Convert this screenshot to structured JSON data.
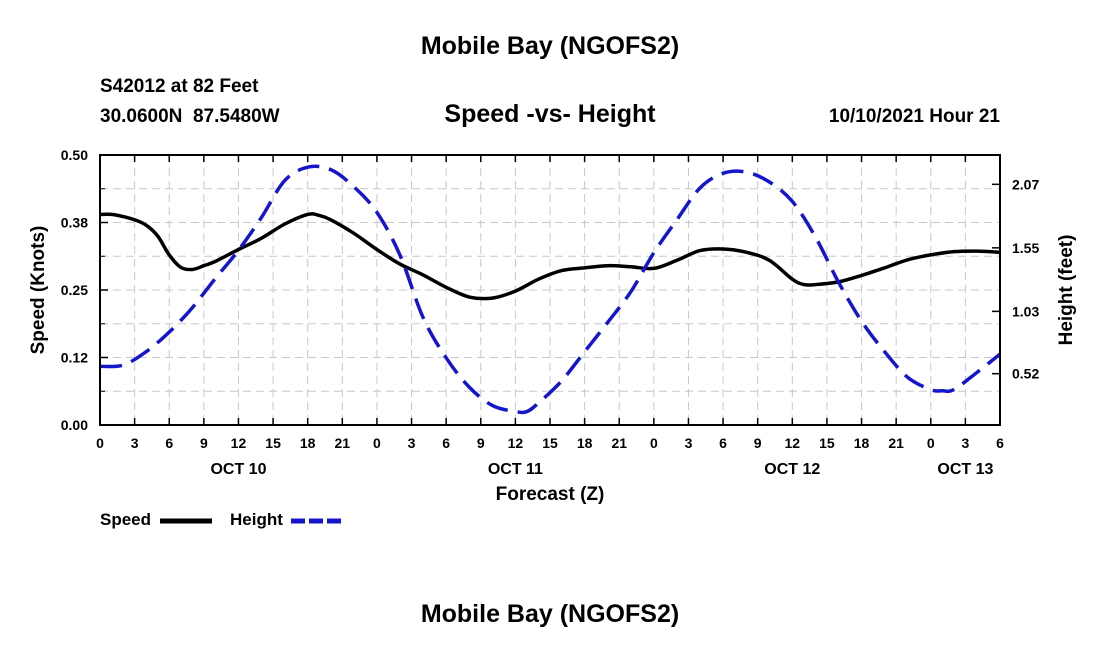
{
  "page": {
    "title": "Mobile Bay (NGOFS2)",
    "station": "S42012 at 82 Feet",
    "coords": "30.0600N  87.5480W",
    "subtitle": "Speed -vs- Height",
    "datetime": "10/10/2021 Hour 21",
    "footer_title": "Mobile Bay (NGOFS2)"
  },
  "legend": {
    "speed_label": "Speed",
    "height_label": "Height"
  },
  "colors": {
    "speed": "#000000",
    "height": "#1515cc",
    "grid": "#c8c8c8"
  },
  "chart_data": {
    "type": "line",
    "xlabel": "Forecast (Z)",
    "ylabel_left": "Speed (Knots)",
    "ylabel_right": "Height (feet)",
    "x_unit": "hours since Oct 10 00Z",
    "xlim": [
      0,
      78
    ],
    "ylim_left": [
      0,
      0.5
    ],
    "ylim_right": [
      0.1,
      2.31
    ],
    "left_ticks": [
      {
        "value": 0.0,
        "label": "0.00"
      },
      {
        "value": 0.125,
        "label": "0.12"
      },
      {
        "value": 0.25,
        "label": "0.25"
      },
      {
        "value": 0.375,
        "label": "0.38"
      },
      {
        "value": 0.5,
        "label": "0.50"
      }
    ],
    "right_ticks": [
      {
        "value": 0.52,
        "label": "0.52"
      },
      {
        "value": 1.03,
        "label": "1.03"
      },
      {
        "value": 1.55,
        "label": "1.55"
      },
      {
        "value": 2.07,
        "label": "2.07"
      }
    ],
    "x_ticks": [
      {
        "value": 0,
        "label": "0"
      },
      {
        "value": 3,
        "label": "3"
      },
      {
        "value": 6,
        "label": "6"
      },
      {
        "value": 9,
        "label": "9"
      },
      {
        "value": 12,
        "label": "12"
      },
      {
        "value": 15,
        "label": "15"
      },
      {
        "value": 18,
        "label": "18"
      },
      {
        "value": 21,
        "label": "21"
      },
      {
        "value": 24,
        "label": "0"
      },
      {
        "value": 27,
        "label": "3"
      },
      {
        "value": 30,
        "label": "6"
      },
      {
        "value": 33,
        "label": "9"
      },
      {
        "value": 36,
        "label": "12"
      },
      {
        "value": 39,
        "label": "15"
      },
      {
        "value": 42,
        "label": "18"
      },
      {
        "value": 45,
        "label": "21"
      },
      {
        "value": 48,
        "label": "0"
      },
      {
        "value": 51,
        "label": "3"
      },
      {
        "value": 54,
        "label": "6"
      },
      {
        "value": 57,
        "label": "9"
      },
      {
        "value": 60,
        "label": "12"
      },
      {
        "value": 63,
        "label": "15"
      },
      {
        "value": 66,
        "label": "18"
      },
      {
        "value": 69,
        "label": "21"
      },
      {
        "value": 72,
        "label": "0"
      },
      {
        "value": 75,
        "label": "3"
      },
      {
        "value": 78,
        "label": "6"
      }
    ],
    "day_labels": [
      {
        "value": 12,
        "label": "OCT 10"
      },
      {
        "value": 36,
        "label": "OCT 11"
      },
      {
        "value": 60,
        "label": "OCT 12"
      },
      {
        "value": 75,
        "label": "OCT 13"
      }
    ],
    "series": [
      {
        "name": "Speed",
        "axis": "left",
        "style": "solid",
        "x": [
          0,
          1,
          2,
          3,
          4,
          5,
          6,
          7,
          8,
          9,
          10,
          12,
          14,
          16,
          18,
          19,
          20,
          22,
          24,
          26,
          28,
          30,
          32,
          34,
          36,
          38,
          40,
          42,
          44,
          46,
          48,
          50,
          52,
          54,
          56,
          58,
          60,
          61,
          62,
          64,
          66,
          68,
          70,
          72,
          74,
          76,
          78
        ],
        "values": [
          0.39,
          0.39,
          0.386,
          0.38,
          0.37,
          0.35,
          0.315,
          0.292,
          0.288,
          0.295,
          0.303,
          0.325,
          0.346,
          0.372,
          0.39,
          0.388,
          0.38,
          0.355,
          0.325,
          0.298,
          0.278,
          0.255,
          0.237,
          0.235,
          0.248,
          0.27,
          0.286,
          0.291,
          0.295,
          0.293,
          0.29,
          0.305,
          0.323,
          0.326,
          0.32,
          0.305,
          0.27,
          0.26,
          0.26,
          0.265,
          0.277,
          0.291,
          0.306,
          0.315,
          0.321,
          0.322,
          0.32
        ]
      },
      {
        "name": "Height",
        "axis": "right",
        "style": "dashed",
        "x": [
          0,
          2,
          4,
          6,
          8,
          10,
          12,
          14,
          16,
          18,
          20,
          22,
          24,
          26,
          28,
          30,
          32,
          34,
          36,
          37,
          38,
          40,
          42,
          44,
          46,
          48,
          50,
          52,
          54,
          56,
          58,
          60,
          62,
          64,
          66,
          68,
          70,
          72,
          73,
          74,
          76,
          78
        ],
        "values": [
          0.58,
          0.59,
          0.7,
          0.86,
          1.06,
          1.3,
          1.53,
          1.8,
          2.1,
          2.21,
          2.19,
          2.05,
          1.84,
          1.49,
          0.98,
          0.65,
          0.41,
          0.26,
          0.21,
          0.21,
          0.28,
          0.46,
          0.7,
          0.94,
          1.19,
          1.51,
          1.78,
          2.04,
          2.16,
          2.17,
          2.09,
          1.93,
          1.64,
          1.27,
          0.95,
          0.7,
          0.49,
          0.39,
          0.38,
          0.39,
          0.53,
          0.68
        ]
      }
    ]
  }
}
